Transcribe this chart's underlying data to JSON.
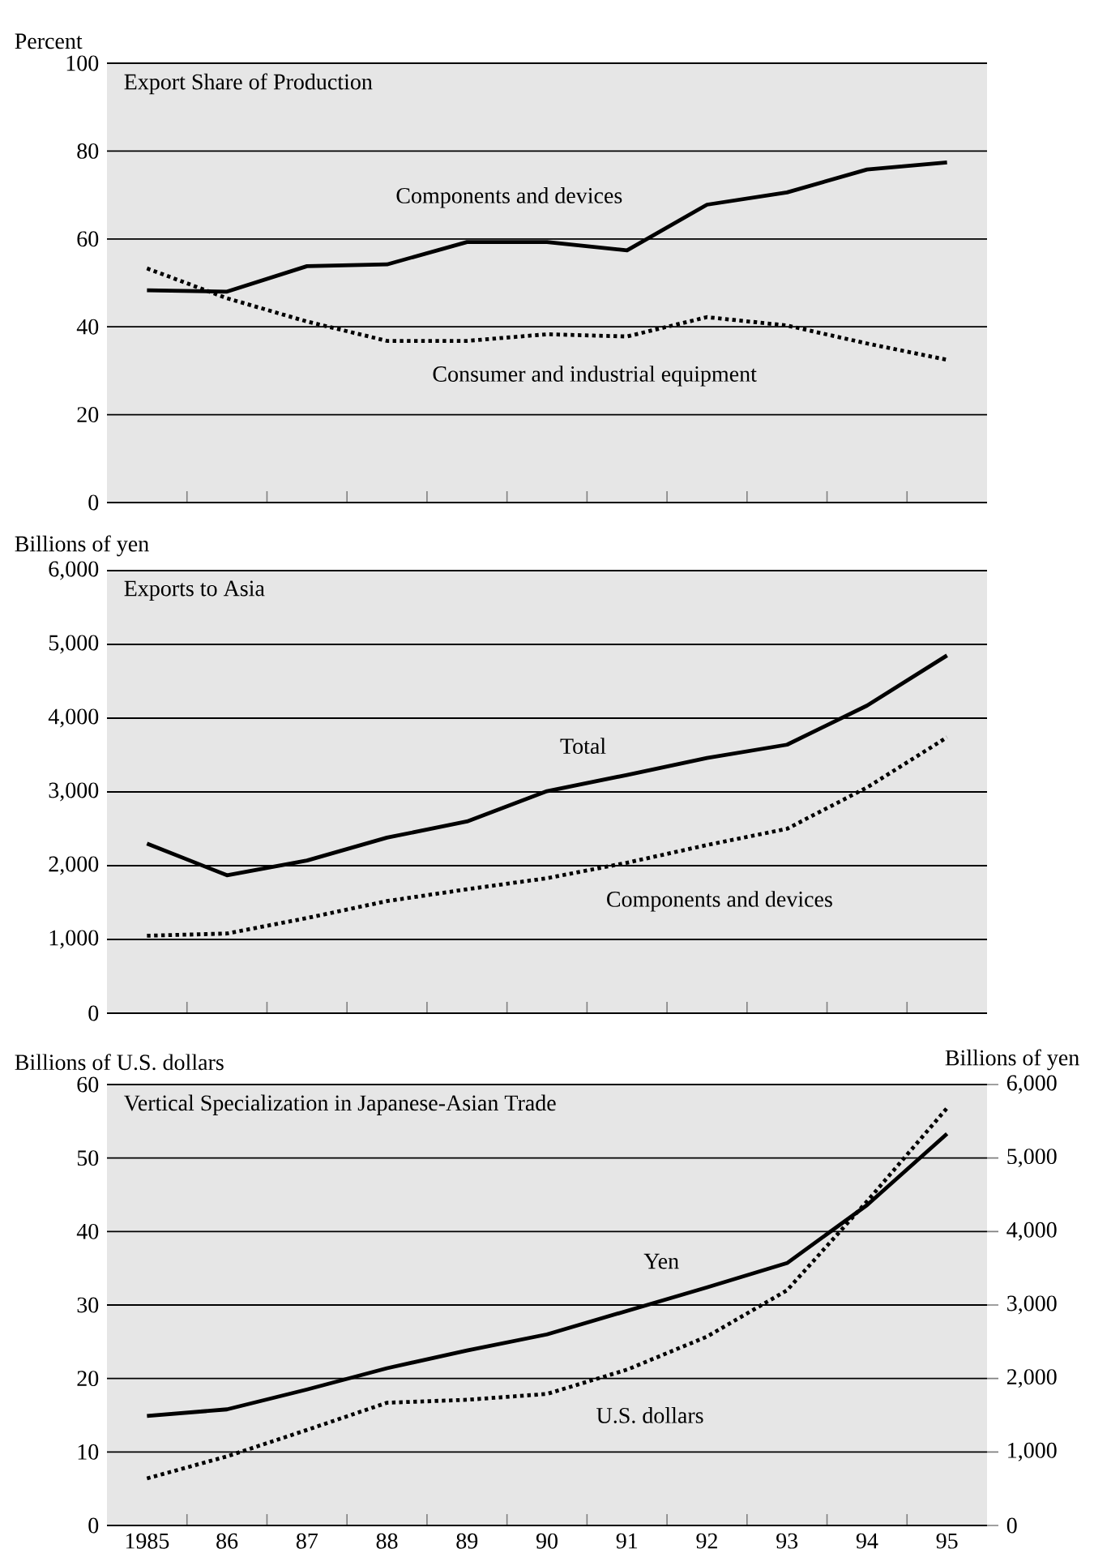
{
  "chart_data": [
    {
      "type": "line",
      "title": "Export Share of Production",
      "ylabel": "Percent",
      "categories": [
        "1985",
        "86",
        "87",
        "88",
        "89",
        "90",
        "91",
        "92",
        "93",
        "94",
        "95"
      ],
      "tick_labels": "y",
      "grid": "y",
      "ylim": [
        0,
        100
      ],
      "yticks": [
        0,
        20,
        40,
        60,
        80,
        100
      ],
      "series": [
        {
          "name": "Components and devices",
          "color": "#000000",
          "line_style": "solid",
          "values": [
            48.3,
            48.0,
            53.8,
            54.2,
            59.3,
            59.3,
            57.4,
            67.8,
            70.6,
            75.8,
            77.4
          ]
        },
        {
          "name": "Consumer and industrial equipment",
          "color": "#000000",
          "line_style": "dotted",
          "values": [
            53.3,
            46.5,
            41.2,
            36.8,
            36.8,
            38.3,
            37.8,
            42.2,
            40.3,
            36.2,
            32.5
          ]
        }
      ]
    },
    {
      "type": "line",
      "title": "Exports to Asia",
      "ylabel": "Billions of yen",
      "categories": [
        "1985",
        "86",
        "87",
        "88",
        "89",
        "90",
        "91",
        "92",
        "93",
        "94",
        "95"
      ],
      "tick_labels": "y",
      "grid": "y",
      "ylim": [
        0,
        6000
      ],
      "yticks": [
        0,
        {
          "value": 1000,
          "label": "1,000"
        },
        {
          "value": 2000,
          "label": "2,000"
        },
        {
          "value": 3000,
          "label": "3,000"
        },
        {
          "value": 4000,
          "label": "4,000"
        },
        {
          "value": 5000,
          "label": "5,000"
        },
        {
          "value": 6000,
          "label": "6,000"
        }
      ],
      "series": [
        {
          "name": "Total",
          "color": "#000000",
          "line_style": "solid",
          "values": [
            2300,
            1870,
            2070,
            2380,
            2600,
            3010,
            3230,
            3460,
            3640,
            4170,
            4850
          ]
        },
        {
          "name": "Components and devices",
          "color": "#000000",
          "line_style": "dotted",
          "values": [
            1050,
            1080,
            1290,
            1520,
            1680,
            1830,
            2040,
            2280,
            2500,
            3060,
            3740
          ]
        }
      ]
    },
    {
      "type": "line",
      "title": "Vertical Specialization in Japanese-Asian Trade",
      "ylabel": "Billions of U.S. dollars",
      "y2label": "Billions of yen",
      "categories": [
        "1985",
        "86",
        "87",
        "88",
        "89",
        "90",
        "91",
        "92",
        "93",
        "94",
        "95"
      ],
      "grid": "y",
      "ylim": [
        0,
        60
      ],
      "yticks": [
        0,
        10,
        20,
        30,
        40,
        50,
        60
      ],
      "y2lim": [
        0,
        6000
      ],
      "y2ticks": [
        0,
        {
          "value": 1000,
          "label": "1,000"
        },
        {
          "value": 2000,
          "label": "2,000"
        },
        {
          "value": 3000,
          "label": "3,000"
        },
        {
          "value": 4000,
          "label": "4,000"
        },
        {
          "value": 5000,
          "label": "5,000"
        },
        {
          "value": 6000,
          "label": "6,000"
        }
      ],
      "series": [
        {
          "name": "Yen",
          "color": "#000000",
          "line_style": "solid",
          "axis": "y2",
          "values": [
            1490,
            1580,
            1850,
            2140,
            2380,
            2600,
            2920,
            3240,
            3570,
            4360,
            5330
          ]
        },
        {
          "name": "U.S. dollars",
          "color": "#000000",
          "line_style": "dotted",
          "values": [
            6.4,
            9.4,
            13.0,
            16.7,
            17.1,
            17.9,
            21.2,
            25.7,
            32.0,
            44.1,
            56.8
          ]
        }
      ]
    }
  ]
}
